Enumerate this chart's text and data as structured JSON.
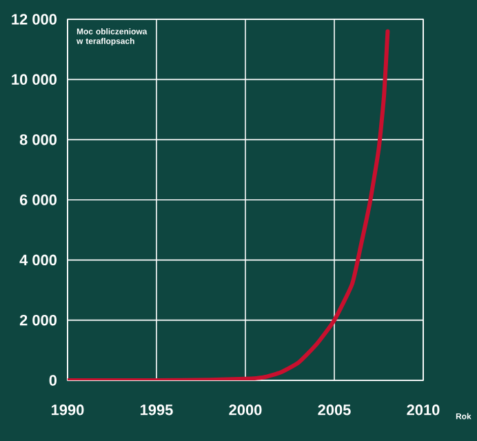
{
  "chart_data": {
    "type": "line",
    "ylabel": "Moc obliczeniowa w teraflopsach",
    "xlabel": "Rok",
    "x": [
      1990,
      1995,
      1998,
      2000,
      2001,
      2002,
      2003,
      2004,
      2005,
      2006,
      2006.5,
      2007,
      2007.5,
      2007.8,
      2008
    ],
    "series": [
      {
        "color": "#c8102e",
        "values": [
          0,
          0,
          20,
          50,
          100,
          270,
          600,
          1200,
          2000,
          3200,
          4500,
          5900,
          7700,
          9500,
          11600
        ]
      }
    ],
    "xlim": [
      1990,
      2010
    ],
    "xticks": [
      1990,
      1995,
      2000,
      2005,
      2010
    ],
    "ylim": [
      0,
      12000
    ],
    "yticks": [
      0,
      {
        "value": 2000,
        "label": "2 000"
      },
      {
        "value": 4000,
        "label": "4 000"
      },
      {
        "value": 6000,
        "label": "6 000"
      },
      {
        "value": 8000,
        "label": "8 000"
      },
      {
        "value": 10000,
        "label": "10 000"
      },
      {
        "value": 12000,
        "label": "12 000"
      }
    ],
    "grid": true
  }
}
